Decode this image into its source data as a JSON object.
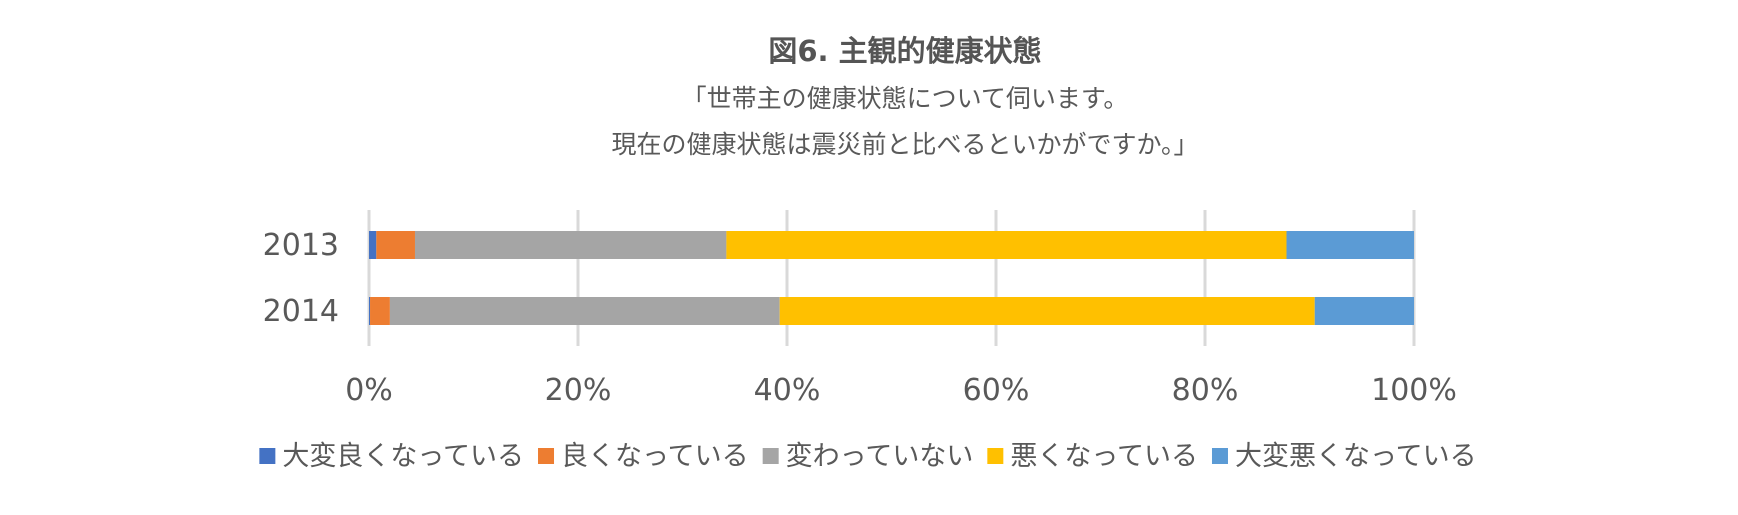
{
  "chart_data": {
    "type": "bar",
    "orientation": "horizontal",
    "stacked": "percent",
    "title": "図6. 主観的健康状態",
    "subtitle": [
      "「世帯主の健康状態について伺います。",
      "現在の健康状態は震災前と比べるといかがですか。」"
    ],
    "categories": [
      "2013",
      "2014"
    ],
    "series": [
      {
        "name": "大変良くなっている",
        "color": "#4472C4",
        "values": [
          0.7,
          0.1
        ]
      },
      {
        "name": "良くなっている",
        "color": "#ED7D31",
        "values": [
          3.7,
          1.9
        ]
      },
      {
        "name": "変わっていない",
        "color": "#A5A5A5",
        "values": [
          29.8,
          37.3
        ]
      },
      {
        "name": "悪くなっている",
        "color": "#FFC000",
        "values": [
          53.6,
          51.2
        ]
      },
      {
        "name": "大変悪くなっている",
        "color": "#5B9BD5",
        "values": [
          12.2,
          9.5
        ]
      }
    ],
    "x_ticks": [
      "0%",
      "20%",
      "40%",
      "60%",
      "80%",
      "100%"
    ],
    "xlim": [
      0,
      100
    ],
    "grid": "vertical",
    "legend": "bottom"
  }
}
